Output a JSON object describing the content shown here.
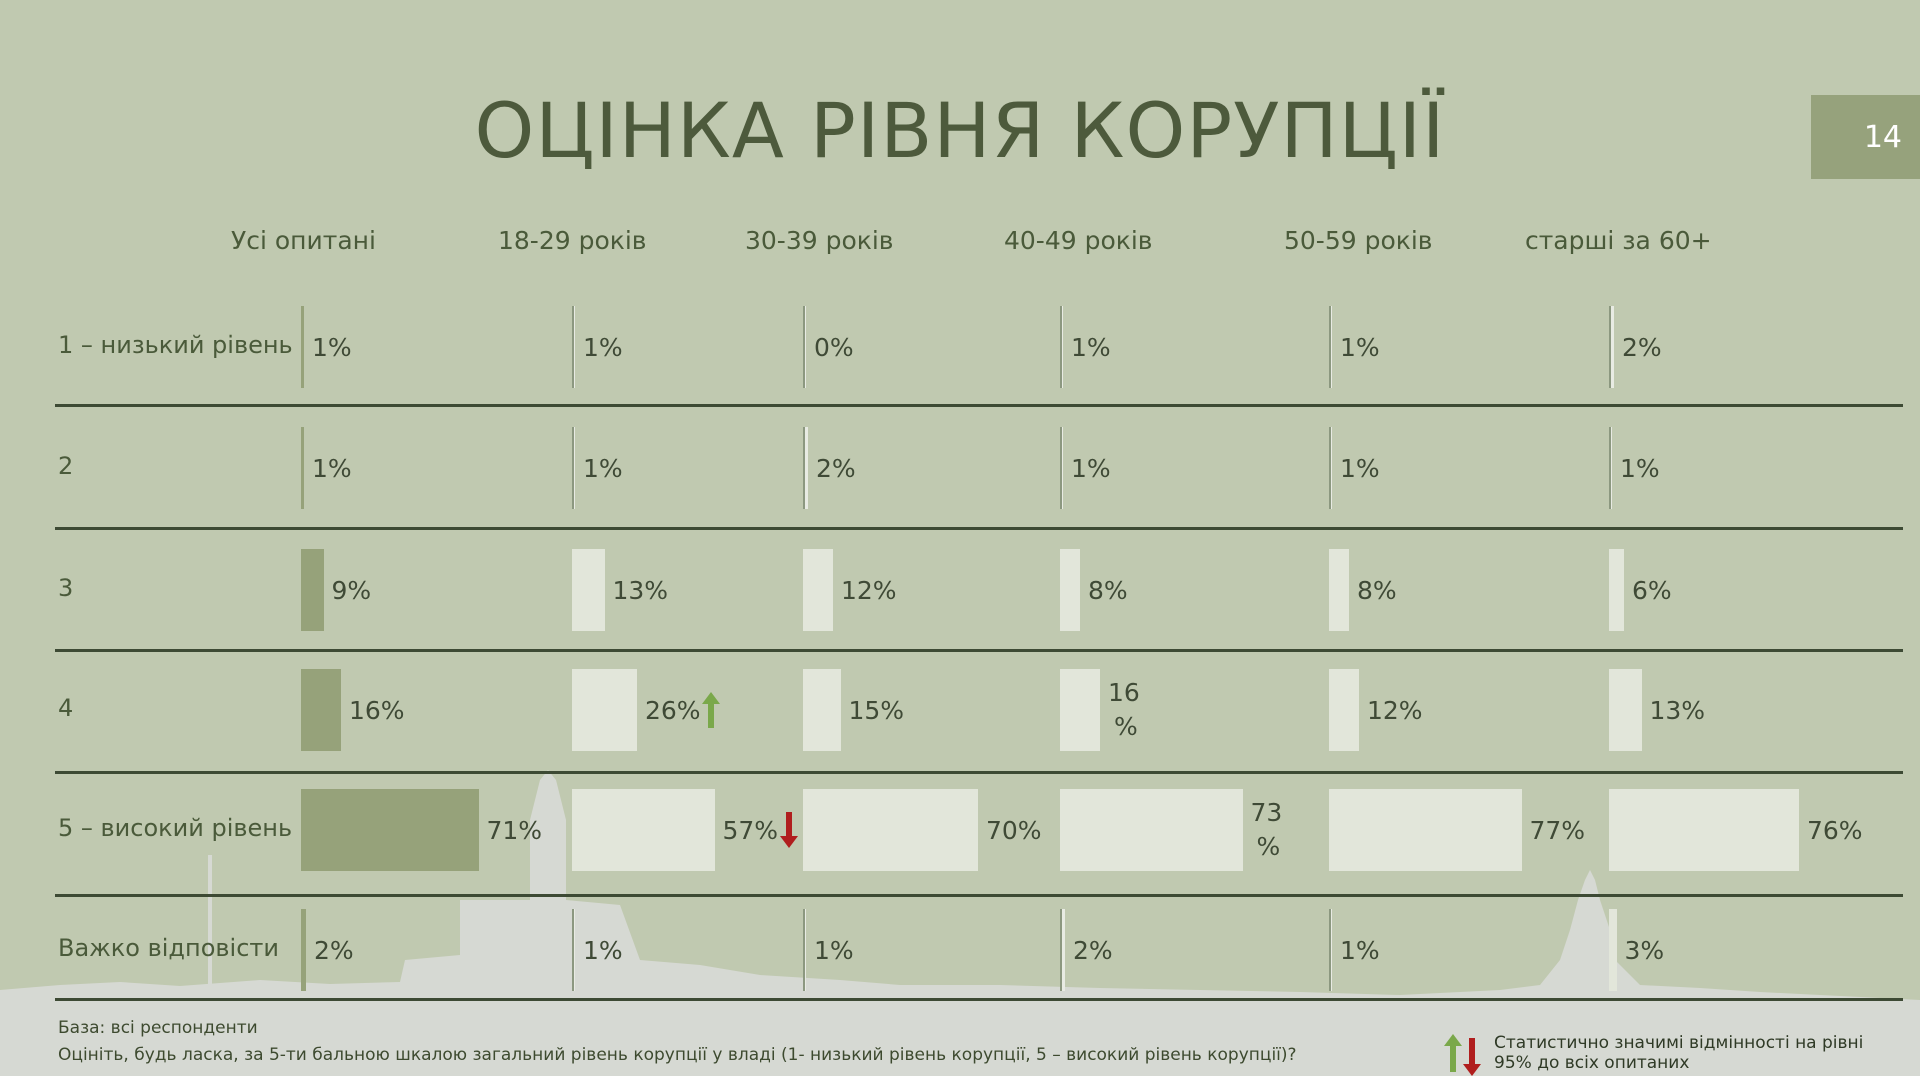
{
  "page": {
    "title": "ОЦІНКА РІВНЯ КОРУПЦІЇ",
    "page_number": "14"
  },
  "chart_data": {
    "type": "bar",
    "orientation": "horizontal",
    "groups": [
      "Усі опитані",
      "18-29 років",
      "30-39 років",
      "40-49 років",
      "50-59 років",
      "старші за  60+"
    ],
    "categories": [
      "1 – низький рівень",
      "2",
      "3",
      "4",
      "5 – високий рівень",
      "Важко відповісти"
    ],
    "series": [
      {
        "name": "Усі опитані",
        "values": [
          1,
          1,
          9,
          16,
          71,
          2
        ],
        "labels": [
          "1%",
          "1%",
          "9%",
          "16%",
          "71%",
          "2%"
        ]
      },
      {
        "name": "18-29 років",
        "values": [
          1,
          1,
          13,
          26,
          57,
          1
        ],
        "labels": [
          "1%",
          "1%",
          "13%",
          "26%",
          "57%",
          "1%"
        ]
      },
      {
        "name": "30-39 років",
        "values": [
          0,
          2,
          12,
          15,
          70,
          1
        ],
        "labels": [
          "0%",
          "2%",
          "12%",
          "15%",
          "70%",
          "1%"
        ]
      },
      {
        "name": "40-49 років",
        "values": [
          1,
          1,
          8,
          16,
          73,
          2
        ],
        "labels": [
          "1%",
          "1%",
          "8%",
          "16\n%",
          "73\n%",
          "2%"
        ]
      },
      {
        "name": "50-59 років",
        "values": [
          1,
          1,
          8,
          12,
          77,
          1
        ],
        "labels": [
          "1%",
          "1%",
          "8%",
          "12%",
          "77%",
          "1%"
        ]
      },
      {
        "name": "старші за  60+",
        "values": [
          2,
          1,
          6,
          13,
          76,
          3
        ],
        "labels": [
          "2%",
          "1%",
          "6%",
          "13%",
          "76%",
          "3%"
        ]
      }
    ],
    "significance": [
      {
        "group": "18-29 років",
        "category": "4",
        "direction": "up"
      },
      {
        "group": "18-29 років",
        "category": "5 – високий рівень",
        "direction": "down"
      }
    ],
    "colors": {
      "all_respondents_bar": "#96a27a",
      "group_bar": "#e2e6da",
      "arrow_up": "#7aa84a",
      "arrow_down": "#b01e1e"
    }
  },
  "footer": {
    "base": "База: всі респонденти",
    "question": "Оцініть, будь ласка, за 5-ти бальною шкалою загальний рівень корупції у владі (1- низький рівень корупції, 5 – високий рівень корупції)?",
    "legend": "Статистично значимі відмінності на  рівні 95% до всіх опитаних"
  }
}
